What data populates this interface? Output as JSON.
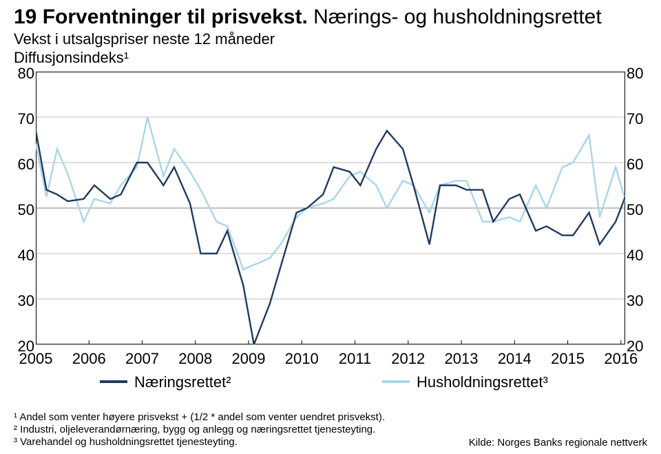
{
  "title_bold": "19  Forventninger til prisvekst. ",
  "title_rest": "Nærings- og husholdningsrettet",
  "subtitle": "Vekst i utsalgspriser neste 12 måneder",
  "note": "Diffusjonsindeks¹",
  "chart": {
    "type": "line",
    "xlim": [
      2005,
      2016.08
    ],
    "ylim": [
      20,
      80
    ],
    "ytick_step": 10,
    "yticks": [
      80,
      70,
      60,
      50,
      40,
      30,
      20
    ],
    "xticks": [
      2005,
      2006,
      2007,
      2008,
      2009,
      2010,
      2011,
      2012,
      2013,
      2014,
      2015,
      2016
    ],
    "grid_color": "#bfbfbf",
    "grid_width": 1,
    "grid_mid_color": "#808080",
    "border_color": "#000000",
    "background": "#ffffff",
    "line_width": 2.4,
    "series": [
      {
        "name": "Husholdningsrettet³",
        "color": "#a9d5e8",
        "points": [
          [
            2005.0,
            64
          ],
          [
            2005.2,
            52.5
          ],
          [
            2005.4,
            63
          ],
          [
            2005.6,
            57.5
          ],
          [
            2005.9,
            47
          ],
          [
            2006.1,
            52
          ],
          [
            2006.4,
            51
          ],
          [
            2006.6,
            55
          ],
          [
            2006.9,
            59
          ],
          [
            2007.1,
            70
          ],
          [
            2007.4,
            57
          ],
          [
            2007.6,
            63
          ],
          [
            2007.9,
            58
          ],
          [
            2008.1,
            54
          ],
          [
            2008.4,
            47
          ],
          [
            2008.6,
            46
          ],
          [
            2008.9,
            36.5
          ],
          [
            2009.1,
            37.5
          ],
          [
            2009.4,
            39
          ],
          [
            2009.6,
            42
          ],
          [
            2009.9,
            48
          ],
          [
            2010.1,
            50
          ],
          [
            2010.4,
            51
          ],
          [
            2010.6,
            52
          ],
          [
            2010.9,
            57
          ],
          [
            2011.1,
            58
          ],
          [
            2011.4,
            55
          ],
          [
            2011.6,
            50
          ],
          [
            2011.9,
            56
          ],
          [
            2012.1,
            55
          ],
          [
            2012.4,
            49
          ],
          [
            2012.6,
            55
          ],
          [
            2012.9,
            56
          ],
          [
            2013.1,
            56
          ],
          [
            2013.4,
            47
          ],
          [
            2013.6,
            47
          ],
          [
            2013.9,
            48
          ],
          [
            2014.1,
            47
          ],
          [
            2014.4,
            55
          ],
          [
            2014.6,
            50
          ],
          [
            2014.9,
            59
          ],
          [
            2015.1,
            60
          ],
          [
            2015.4,
            66
          ],
          [
            2015.6,
            48
          ],
          [
            2015.9,
            59
          ],
          [
            2016.1,
            51
          ]
        ]
      },
      {
        "name": "Næringsrettet²",
        "color": "#1f3a5f",
        "points": [
          [
            2005.0,
            67
          ],
          [
            2005.2,
            54
          ],
          [
            2005.4,
            53
          ],
          [
            2005.6,
            51.5
          ],
          [
            2005.9,
            52
          ],
          [
            2006.1,
            55
          ],
          [
            2006.4,
            52
          ],
          [
            2006.6,
            53
          ],
          [
            2006.9,
            60
          ],
          [
            2007.1,
            60
          ],
          [
            2007.4,
            55
          ],
          [
            2007.6,
            59
          ],
          [
            2007.9,
            51
          ],
          [
            2008.1,
            40
          ],
          [
            2008.4,
            40
          ],
          [
            2008.6,
            45
          ],
          [
            2008.9,
            33
          ],
          [
            2009.1,
            20
          ],
          [
            2009.4,
            29
          ],
          [
            2009.6,
            37
          ],
          [
            2009.9,
            49
          ],
          [
            2010.1,
            50
          ],
          [
            2010.4,
            53
          ],
          [
            2010.6,
            59
          ],
          [
            2010.9,
            58
          ],
          [
            2011.1,
            55
          ],
          [
            2011.4,
            63
          ],
          [
            2011.6,
            67
          ],
          [
            2011.9,
            63
          ],
          [
            2012.1,
            55
          ],
          [
            2012.4,
            42
          ],
          [
            2012.6,
            55
          ],
          [
            2012.9,
            55
          ],
          [
            2013.1,
            54
          ],
          [
            2013.4,
            54
          ],
          [
            2013.6,
            47
          ],
          [
            2013.9,
            52
          ],
          [
            2014.1,
            53
          ],
          [
            2014.4,
            45
          ],
          [
            2014.6,
            46
          ],
          [
            2014.9,
            44
          ],
          [
            2015.1,
            44
          ],
          [
            2015.4,
            49
          ],
          [
            2015.6,
            42
          ],
          [
            2015.9,
            47
          ],
          [
            2016.1,
            53
          ]
        ]
      }
    ]
  },
  "legend": {
    "items": [
      {
        "label": "Næringsrettet²",
        "color": "#1f3a5f"
      },
      {
        "label": "Husholdningsrettet³",
        "color": "#a9d5e8"
      }
    ]
  },
  "footnotes": [
    "¹ Andel som venter høyere prisvekst + (1/2 * andel som venter uendret prisvekst).",
    "² Industri, oljeleverandørnæring, bygg og anlegg og næringsrettet tjenesteyting.",
    "³ Varehandel og husholdningsrettet tjenesteyting."
  ],
  "source": "Kilde: Norges Banks regionale nettverk",
  "tick_fontsize": 22,
  "footnote_fontsize": 15
}
